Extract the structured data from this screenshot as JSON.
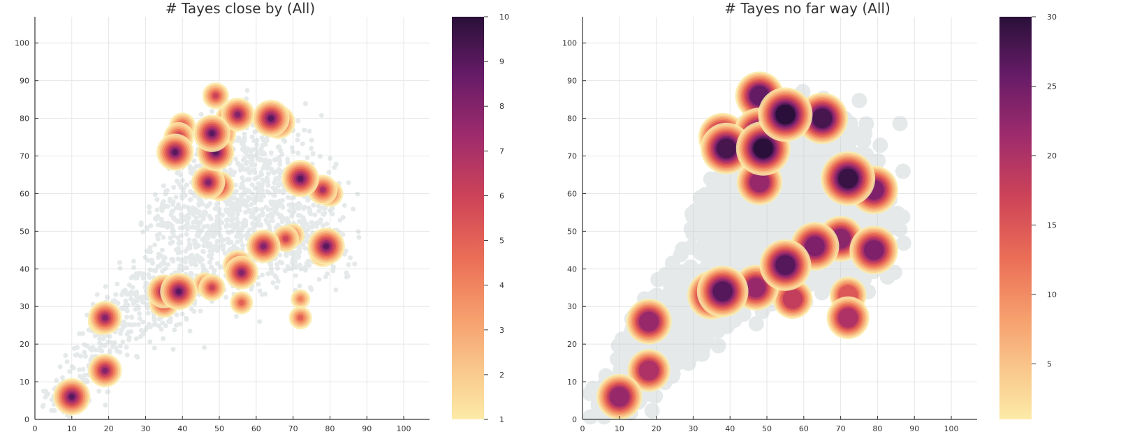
{
  "chart_data": [
    {
      "type": "scatter",
      "title": "# Tayes close by (All)",
      "xlabel": "",
      "ylabel": "",
      "xlim": [
        0,
        107
      ],
      "ylim": [
        0,
        107
      ],
      "xticks": [
        0,
        10,
        20,
        30,
        40,
        50,
        60,
        70,
        80,
        90,
        100
      ],
      "yticks": [
        0,
        10,
        20,
        30,
        40,
        50,
        60,
        70,
        80,
        90,
        100
      ],
      "grid": true,
      "colorbar": {
        "min": 1,
        "max": 10,
        "ticks": [
          1,
          2,
          3,
          4,
          5,
          6,
          7,
          8,
          9,
          10
        ],
        "colormap": "magma-reversed"
      },
      "background_points_color": "#c3cdcf",
      "clusters": [
        {
          "x": 10,
          "y": 6,
          "value": 9
        },
        {
          "x": 17,
          "y": 12,
          "value": 3
        },
        {
          "x": 19,
          "y": 13,
          "value": 8
        },
        {
          "x": 18,
          "y": 26,
          "value": 6
        },
        {
          "x": 19,
          "y": 27,
          "value": 8
        },
        {
          "x": 35,
          "y": 34,
          "value": 8
        },
        {
          "x": 35,
          "y": 31,
          "value": 7
        },
        {
          "x": 39,
          "y": 34,
          "value": 9
        },
        {
          "x": 46,
          "y": 36,
          "value": 5
        },
        {
          "x": 48,
          "y": 35,
          "value": 6
        },
        {
          "x": 56,
          "y": 31,
          "value": 5
        },
        {
          "x": 55,
          "y": 41,
          "value": 7
        },
        {
          "x": 56,
          "y": 39,
          "value": 8
        },
        {
          "x": 62,
          "y": 46,
          "value": 8
        },
        {
          "x": 68,
          "y": 48,
          "value": 6
        },
        {
          "x": 70,
          "y": 49,
          "value": 5
        },
        {
          "x": 72,
          "y": 32,
          "value": 4
        },
        {
          "x": 72,
          "y": 27,
          "value": 5
        },
        {
          "x": 79,
          "y": 46,
          "value": 9
        },
        {
          "x": 78,
          "y": 44,
          "value": 6
        },
        {
          "x": 72,
          "y": 64,
          "value": 9
        },
        {
          "x": 78,
          "y": 61,
          "value": 7
        },
        {
          "x": 80,
          "y": 60,
          "value": 6
        },
        {
          "x": 47,
          "y": 63,
          "value": 8
        },
        {
          "x": 50,
          "y": 62,
          "value": 7
        },
        {
          "x": 49,
          "y": 71,
          "value": 9
        },
        {
          "x": 48,
          "y": 76,
          "value": 9
        },
        {
          "x": 50,
          "y": 76,
          "value": 8
        },
        {
          "x": 38,
          "y": 71,
          "value": 9
        },
        {
          "x": 39,
          "y": 75,
          "value": 7
        },
        {
          "x": 40,
          "y": 78,
          "value": 6
        },
        {
          "x": 53,
          "y": 80,
          "value": 7
        },
        {
          "x": 55,
          "y": 81,
          "value": 8
        },
        {
          "x": 64,
          "y": 80,
          "value": 9
        },
        {
          "x": 66,
          "y": 79,
          "value": 8
        },
        {
          "x": 49,
          "y": 86,
          "value": 6
        }
      ]
    },
    {
      "type": "scatter",
      "title": "# Tayes no far way (All)",
      "xlabel": "",
      "ylabel": "",
      "xlim": [
        0,
        107
      ],
      "ylim": [
        0,
        107
      ],
      "xticks": [
        0,
        10,
        20,
        30,
        40,
        50,
        60,
        70,
        80,
        90,
        100
      ],
      "yticks": [
        0,
        10,
        20,
        30,
        40,
        50,
        60,
        70,
        80,
        90,
        100
      ],
      "grid": true,
      "colorbar": {
        "min": 1,
        "max": 30,
        "ticks": [
          5,
          10,
          15,
          20,
          25,
          30
        ],
        "colormap": "magma-reversed"
      },
      "background_points_color": "#c3cdcf",
      "clusters": [
        {
          "x": 10,
          "y": 6,
          "value": 22
        },
        {
          "x": 18,
          "y": 26,
          "value": 22
        },
        {
          "x": 18,
          "y": 13,
          "value": 20
        },
        {
          "x": 35,
          "y": 33,
          "value": 25
        },
        {
          "x": 38,
          "y": 34,
          "value": 27
        },
        {
          "x": 47,
          "y": 35,
          "value": 22
        },
        {
          "x": 55,
          "y": 41,
          "value": 27
        },
        {
          "x": 57,
          "y": 32,
          "value": 18
        },
        {
          "x": 63,
          "y": 46,
          "value": 24
        },
        {
          "x": 70,
          "y": 48,
          "value": 23
        },
        {
          "x": 79,
          "y": 45,
          "value": 24
        },
        {
          "x": 72,
          "y": 33,
          "value": 15
        },
        {
          "x": 72,
          "y": 27,
          "value": 20
        },
        {
          "x": 72,
          "y": 64,
          "value": 29
        },
        {
          "x": 79,
          "y": 61,
          "value": 24
        },
        {
          "x": 48,
          "y": 63,
          "value": 22
        },
        {
          "x": 49,
          "y": 72,
          "value": 30
        },
        {
          "x": 48,
          "y": 76,
          "value": 27
        },
        {
          "x": 38,
          "y": 75,
          "value": 26
        },
        {
          "x": 39,
          "y": 72,
          "value": 28
        },
        {
          "x": 48,
          "y": 86,
          "value": 26
        },
        {
          "x": 55,
          "y": 81,
          "value": 30
        },
        {
          "x": 65,
          "y": 80,
          "value": 28
        }
      ]
    }
  ]
}
